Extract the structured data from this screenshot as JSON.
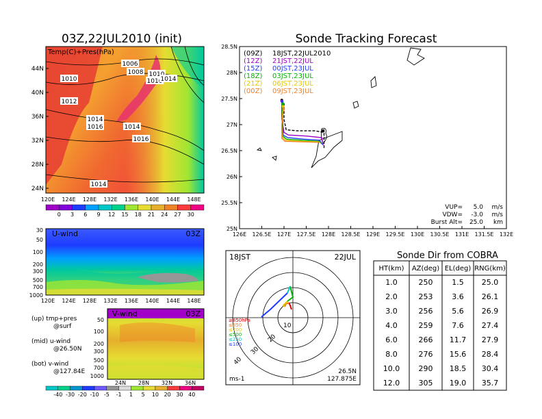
{
  "left_panel": {
    "title": "03Z,22JUL2010 (init)",
    "map_label": "Temp(C)+Pres(hPa)",
    "lat_ticks": [
      "44N",
      "40N",
      "36N",
      "32N",
      "28N",
      "24N"
    ],
    "lon_ticks": [
      "120E",
      "124E",
      "128E",
      "132E",
      "136E",
      "140E",
      "144E",
      "148E"
    ],
    "isobar_labels": [
      "1006",
      "1008",
      "1010",
      "1010",
      "1012",
      "1014",
      "1016",
      "1014",
      "1016",
      "1014",
      "1010",
      "1014",
      "1014"
    ],
    "temp_colorbar": {
      "values": [
        "0",
        "3",
        "6",
        "9",
        "12",
        "15",
        "18",
        "21",
        "24",
        "27",
        "30"
      ],
      "colors": [
        "#a000c8",
        "#8200dc",
        "#1e3cff",
        "#00a0ff",
        "#00c8c8",
        "#00d28c",
        "#a0e632",
        "#e6dc32",
        "#e6af2d",
        "#f08228",
        "#fa3c3c",
        "#f00082"
      ]
    }
  },
  "uwind_panel": {
    "label": "U-wind",
    "time": "03Z",
    "p_ticks": [
      "30",
      "50",
      "100",
      "200",
      "300",
      "500",
      "700",
      "1000"
    ],
    "lon_ticks": [
      "120E",
      "124E",
      "128E",
      "132E",
      "136E",
      "140E",
      "144E",
      "148E"
    ]
  },
  "vwind_panel": {
    "label": "V-wind",
    "time": "03Z",
    "p_ticks": [
      "50",
      "100",
      "200",
      "300",
      "500",
      "700",
      "1000"
    ],
    "lat_ticks": [
      "24N",
      "28N",
      "32N",
      "36N"
    ],
    "colorbar": {
      "values": [
        "-40",
        "-30",
        "-20",
        "-10",
        "-5",
        "-1",
        "1",
        "5",
        "10",
        "20",
        "30",
        "40"
      ],
      "colors": [
        "#00c8c8",
        "#00d28c",
        "#0096d2",
        "#1e3cff",
        "#6e5aff",
        "#969696",
        "#dcdcdc",
        "#a0e632",
        "#e6dc32",
        "#e6af2d",
        "#fa3c3c",
        "#f00082",
        "#c00060"
      ]
    }
  },
  "legend_notes": [
    {
      "l1": "(up) tmp+pres",
      "l2": "@surf"
    },
    {
      "l1": "(mid) u-wind",
      "l2": "@26.50N"
    },
    {
      "l1": "(bot) v-wind",
      "l2": "@127.84E"
    }
  ],
  "track_panel": {
    "title": "Sonde Tracking Forecast",
    "lat_ticks": [
      "28.5N",
      "28N",
      "27.5N",
      "27N",
      "26.5N",
      "26N",
      "25.5N",
      "25N"
    ],
    "lon_ticks": [
      "126E",
      "126.5E",
      "127E",
      "127.5E",
      "128E",
      "128.5E",
      "129E",
      "129.5E",
      "130E",
      "130.5E",
      "131E",
      "131.5E",
      "132E"
    ],
    "runs": [
      {
        "run": "(09Z)",
        "valid": "18JST,22JUL2010",
        "color": "#000000"
      },
      {
        "run": "(12Z)",
        "valid": "21JST,22JUL",
        "color": "#a000c8"
      },
      {
        "run": "(15Z)",
        "valid": "00JST,23JUL",
        "color": "#1e3cff"
      },
      {
        "run": "(18Z)",
        "valid": "03JST,23JUL",
        "color": "#00b400"
      },
      {
        "run": "(21Z)",
        "valid": "06JST,23JUL",
        "color": "#e6c800"
      },
      {
        "run": "(00Z)",
        "valid": "09JST,23JUL",
        "color": "#f08228"
      }
    ],
    "params": [
      {
        "label": "VUP=",
        "value": "5.0",
        "unit": "m/s"
      },
      {
        "label": "VDW=",
        "value": "-3.0",
        "unit": "m/s"
      },
      {
        "label": "Burst Alt=",
        "value": "25.0",
        "unit": "km"
      }
    ]
  },
  "polar_panel": {
    "left_label": "18JST",
    "right_label": "22JUL",
    "ring_labels": [
      "10",
      "20",
      "30",
      "40"
    ],
    "pressure_legend": [
      {
        "text": "≥850hPa",
        "color": "#e00000"
      },
      {
        "text": "≤850",
        "color": "#f08228"
      },
      {
        "text": "≤700",
        "color": "#e6c800"
      },
      {
        "text": "≤500",
        "color": "#00b400"
      },
      {
        "text": "≤250",
        "color": "#00c8c8"
      },
      {
        "text": "≤100",
        "color": "#1e3cff"
      }
    ],
    "unit": "ms-1",
    "loc_lat": "26.5N",
    "loc_lon": "127.875E"
  },
  "table": {
    "title": "Sonde Dir from COBRA",
    "headers": [
      "HT(km)",
      "AZ(deg)",
      "EL(deg)",
      "RNG(km)"
    ],
    "rows": [
      [
        "1.0",
        "250",
        "1.5",
        "25.0"
      ],
      [
        "2.0",
        "253",
        "3.6",
        "26.1"
      ],
      [
        "3.0",
        "256",
        "5.6",
        "26.9"
      ],
      [
        "4.0",
        "259",
        "7.6",
        "27.4"
      ],
      [
        "6.0",
        "266",
        "11.7",
        "27.9"
      ],
      [
        "8.0",
        "276",
        "15.6",
        "28.4"
      ],
      [
        "10.0",
        "290",
        "18.5",
        "30.4"
      ],
      [
        "12.0",
        "305",
        "19.0",
        "35.7"
      ]
    ]
  },
  "chart_data": {
    "type": "line",
    "title": "Sonde Tracking Forecast",
    "xlim": [
      126,
      132
    ],
    "ylim": [
      25,
      28.5
    ],
    "series": [
      {
        "name": "18JST,22JUL2010",
        "x": [
          127.9,
          127.9,
          127.7,
          127.3,
          127.05,
          127.0,
          127.0,
          126.95
        ],
        "y": [
          26.55,
          26.85,
          26.88,
          26.88,
          26.9,
          27.1,
          27.4,
          27.47
        ]
      },
      {
        "name": "21JST,22JUL",
        "x": [
          127.88,
          127.85,
          127.5,
          127.1,
          127.0,
          126.95,
          126.95
        ],
        "y": [
          26.6,
          26.75,
          26.78,
          26.8,
          26.85,
          27.1,
          27.45
        ]
      },
      {
        "name": "00JST,23JUL",
        "x": [
          127.86,
          127.8,
          127.45,
          127.08,
          126.98,
          126.97,
          126.96
        ],
        "y": [
          26.62,
          26.7,
          26.72,
          26.75,
          26.8,
          27.1,
          27.44
        ]
      },
      {
        "name": "03JST,23JUL",
        "x": [
          127.84,
          127.78,
          127.4,
          127.06,
          126.97,
          126.96,
          126.97
        ],
        "y": [
          26.64,
          26.68,
          26.7,
          26.72,
          26.78,
          27.05,
          27.4
        ]
      },
      {
        "name": "06JST,23JUL",
        "x": [
          127.82,
          127.76,
          127.38,
          127.04,
          126.96,
          126.95,
          126.98
        ],
        "y": [
          26.65,
          26.67,
          26.68,
          26.7,
          26.76,
          27.0,
          27.35
        ]
      },
      {
        "name": "09JST,23JUL",
        "x": [
          127.8,
          127.74,
          127.35,
          127.02,
          126.95,
          126.95,
          126.99
        ],
        "y": [
          26.66,
          26.66,
          26.67,
          26.68,
          26.74,
          26.98,
          27.3
        ]
      }
    ]
  }
}
